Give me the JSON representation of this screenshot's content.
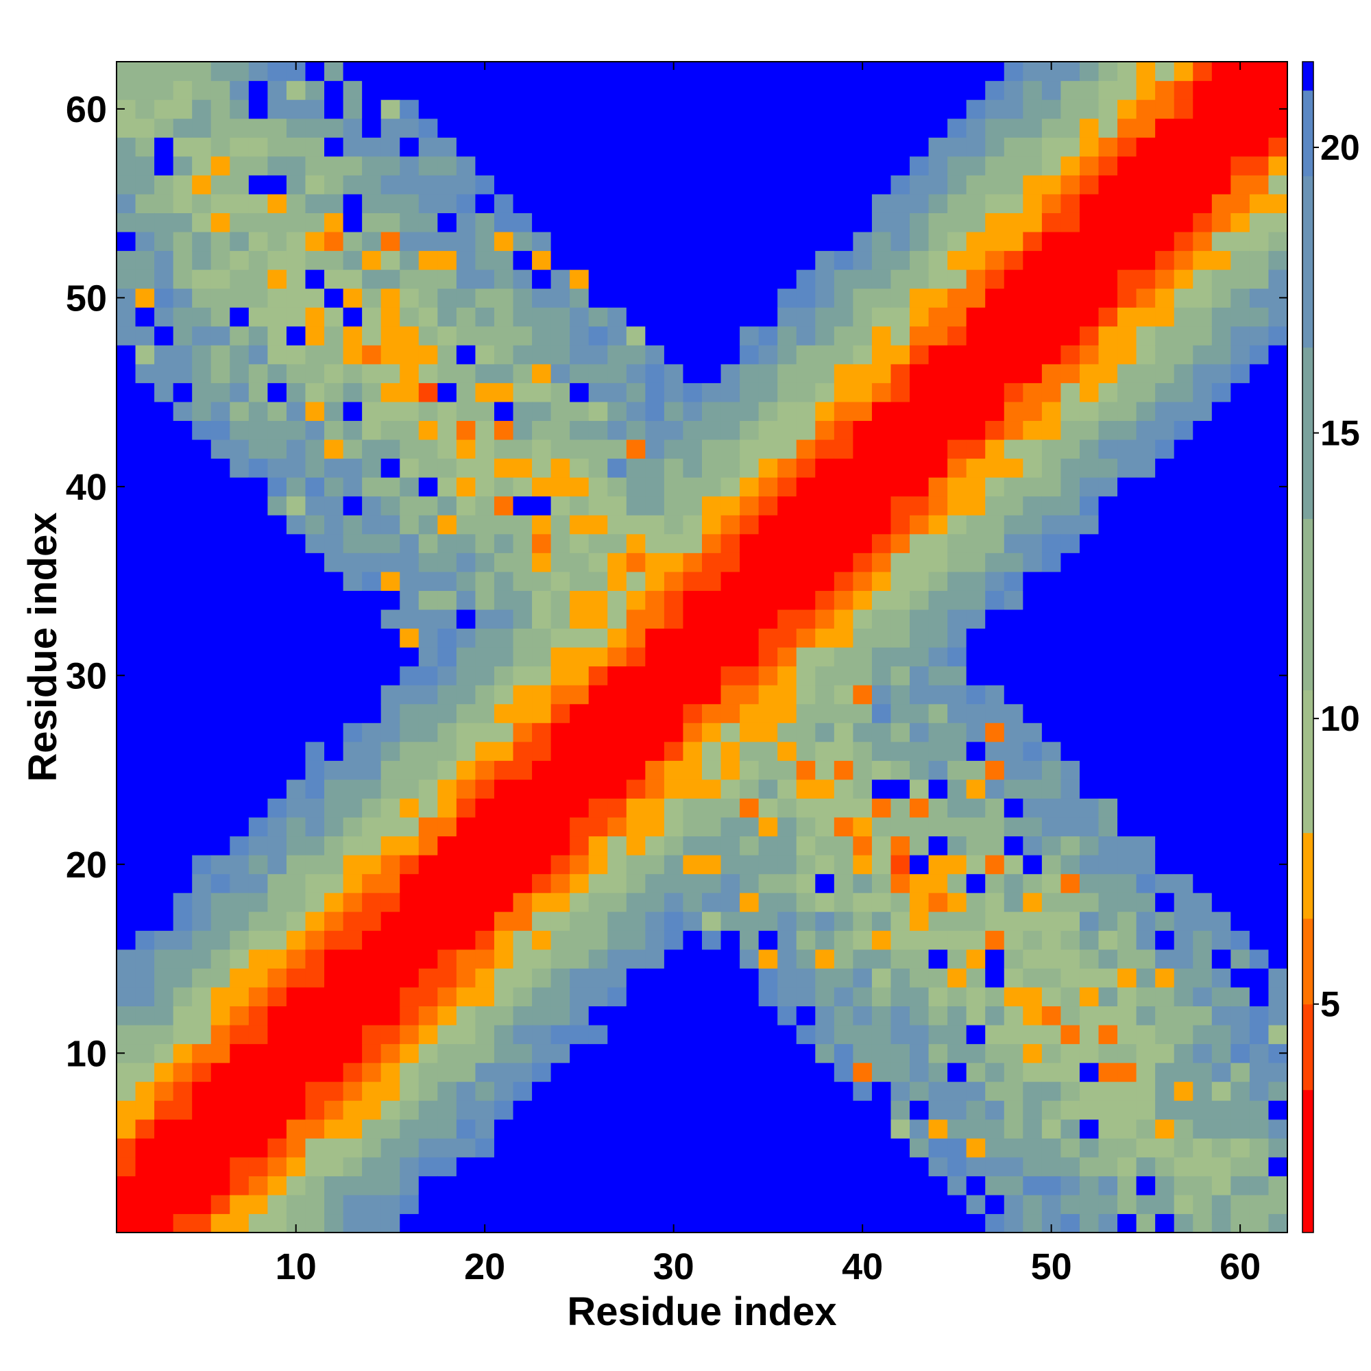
{
  "chart_data": {
    "type": "heatmap",
    "title": "",
    "xlabel": "Residue index",
    "ylabel": "Residue index",
    "n_residues": 62,
    "xlim": [
      0.5,
      62.5
    ],
    "ylim": [
      0.5,
      62.5
    ],
    "x_ticks": [
      10,
      20,
      30,
      40,
      50,
      60
    ],
    "y_ticks": [
      10,
      20,
      30,
      40,
      50,
      60
    ],
    "x_tick_labels": [
      "10",
      "20",
      "30",
      "40",
      "50",
      "60"
    ],
    "y_tick_labels": [
      "10",
      "20",
      "30",
      "40",
      "50",
      "60"
    ],
    "value_description": "pairwise distance between residues; values above 21 shown as background",
    "colorbar": {
      "range": [
        1,
        21.5
      ],
      "ticks": [
        5,
        10,
        15,
        20
      ],
      "tick_labels": [
        "5",
        "10",
        "15",
        "20"
      ],
      "position": "right"
    },
    "color_levels": [
      {
        "min": 0,
        "max": 3.5,
        "color": "#ff0000"
      },
      {
        "min": 3.5,
        "max": 5.0,
        "color": "#ff4500"
      },
      {
        "min": 5.0,
        "max": 6.5,
        "color": "#ff7300"
      },
      {
        "min": 6.5,
        "max": 8.0,
        "color": "#ffa500"
      },
      {
        "min": 8.0,
        "max": 10.5,
        "color": "#a2bf8a"
      },
      {
        "min": 10.5,
        "max": 13.5,
        "color": "#94b58e"
      },
      {
        "min": 13.5,
        "max": 16.5,
        "color": "#7ba29d"
      },
      {
        "min": 16.5,
        "max": 19.5,
        "color": "#6a93b6"
      },
      {
        "min": 19.5,
        "max": 21.0,
        "color": "#5b88c4"
      },
      {
        "min": 21.0,
        "max": 999,
        "color": "#0000ff"
      }
    ],
    "structure_description": "Main diagonal band (|i-j| small) and an anti-diagonal band of contacts where residues i+j is about 62, forming an X shape"
  }
}
